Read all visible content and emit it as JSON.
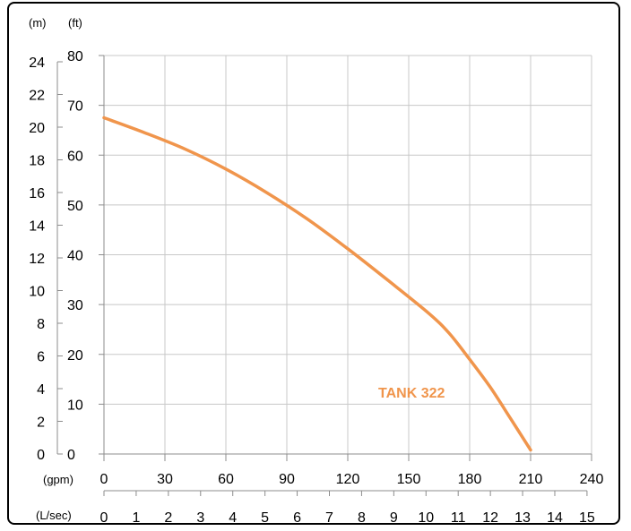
{
  "chart_data": {
    "type": "line",
    "title": "",
    "units": {
      "head_m": "(m)",
      "head_ft": "(ft)",
      "flow_gpm": "(gpm)",
      "flow_lsec": "(L/sec)"
    },
    "x_gpm_ticks": [
      "0",
      "30",
      "60",
      "90",
      "120",
      "150",
      "180",
      "210",
      "240"
    ],
    "x_lsec_ticks": [
      "0",
      "1",
      "2",
      "3",
      "4",
      "5",
      "6",
      "7",
      "8",
      "9",
      "10",
      "11",
      "12",
      "13",
      "14",
      "15"
    ],
    "y_ft_ticks": [
      "0",
      "10",
      "20",
      "30",
      "40",
      "50",
      "60",
      "70",
      "80"
    ],
    "y_m_ticks": [
      "0",
      "2",
      "4",
      "6",
      "8",
      "10",
      "12",
      "14",
      "16",
      "18",
      "20",
      "22",
      "24"
    ],
    "xlim_gpm": [
      0,
      240
    ],
    "ylim_ft": [
      0,
      80
    ],
    "grid": true,
    "series": [
      {
        "name": "TANK 322",
        "color": "#f0954c",
        "x": [
          0,
          20,
          40,
          60,
          80,
          100,
          120,
          140,
          160,
          170,
          180,
          190,
          200,
          210
        ],
        "y": [
          67.5,
          64.5,
          61.2,
          57.2,
          52.5,
          47.2,
          41.2,
          34.8,
          28.2,
          24.2,
          19.0,
          13.5,
          7.2,
          0.8
        ]
      }
    ]
  }
}
